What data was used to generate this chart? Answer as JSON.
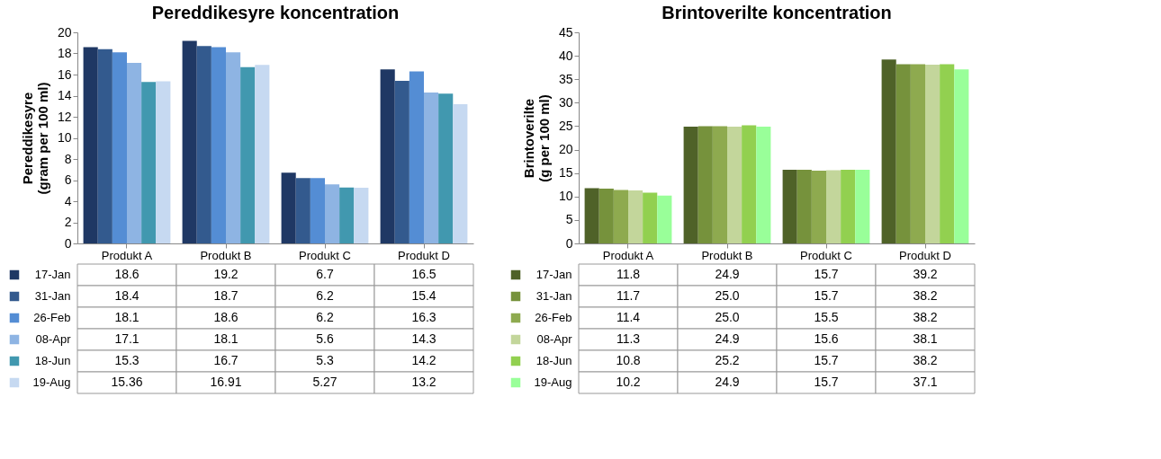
{
  "chart_data": [
    {
      "type": "bar",
      "title": "Pereddikesyre koncentration",
      "ylabel": "Pereddikesyre\n(gram per 100 ml)",
      "categories": [
        "Produkt A",
        "Produkt B",
        "Produkt C",
        "Produkt D"
      ],
      "ylim": [
        0,
        20
      ],
      "yticks": [
        0,
        2,
        4,
        6,
        8,
        10,
        12,
        14,
        16,
        18,
        20
      ],
      "grid": false,
      "legend": "bottom",
      "series": [
        {
          "name": "17-Jan",
          "color": "#1f3864",
          "values": [
            18.6,
            19.2,
            6.7,
            16.5
          ],
          "value_labels": [
            "18.6",
            "19.2",
            "6.7",
            "16.5"
          ]
        },
        {
          "name": "31-Jan",
          "color": "#335a8e",
          "values": [
            18.4,
            18.7,
            6.2,
            15.4
          ],
          "value_labels": [
            "18.4",
            "18.7",
            "6.2",
            "15.4"
          ]
        },
        {
          "name": "26-Feb",
          "color": "#548dd4",
          "values": [
            18.1,
            18.6,
            6.2,
            16.3
          ],
          "value_labels": [
            "18.1",
            "18.6",
            "6.2",
            "16.3"
          ]
        },
        {
          "name": "08-Apr",
          "color": "#8eb4e3",
          "values": [
            17.1,
            18.1,
            5.6,
            14.3
          ],
          "value_labels": [
            "17.1",
            "18.1",
            "5.6",
            "14.3"
          ]
        },
        {
          "name": "18-Jun",
          "color": "#4198af",
          "values": [
            15.3,
            16.7,
            5.3,
            14.2
          ],
          "value_labels": [
            "15.3",
            "16.7",
            "5.3",
            "14.2"
          ]
        },
        {
          "name": "19-Aug",
          "color": "#c6d9f1",
          "values": [
            15.36,
            16.91,
            5.27,
            13.2
          ],
          "value_labels": [
            "15.36",
            "16.91",
            "5.27",
            "13.2"
          ]
        }
      ]
    },
    {
      "type": "bar",
      "title": "Brintoverilte koncentration",
      "ylabel": "Brintoverilte\n(g per 100 ml)",
      "categories": [
        "Produkt A",
        "Produkt B",
        "Produkt C",
        "Produkt D"
      ],
      "ylim": [
        0,
        45
      ],
      "yticks": [
        0,
        5,
        10,
        15,
        20,
        25,
        30,
        35,
        40,
        45
      ],
      "grid": false,
      "legend": "bottom",
      "series": [
        {
          "name": "17-Jan",
          "color": "#4f6228",
          "values": [
            11.8,
            24.9,
            15.7,
            39.2
          ],
          "value_labels": [
            "11.8",
            "24.9",
            "15.7",
            "39.2"
          ]
        },
        {
          "name": "31-Jan",
          "color": "#76923c",
          "values": [
            11.7,
            25.0,
            15.7,
            38.2
          ],
          "value_labels": [
            "11.7",
            "25.0",
            "15.7",
            "38.2"
          ]
        },
        {
          "name": "26-Feb",
          "color": "#8eaa4f",
          "values": [
            11.4,
            25.0,
            15.5,
            38.2
          ],
          "value_labels": [
            "11.4",
            "25.0",
            "15.5",
            "38.2"
          ]
        },
        {
          "name": "08-Apr",
          "color": "#c3d69b",
          "values": [
            11.3,
            24.9,
            15.6,
            38.1
          ],
          "value_labels": [
            "11.3",
            "24.9",
            "15.6",
            "38.1"
          ]
        },
        {
          "name": "18-Jun",
          "color": "#92d050",
          "values": [
            10.8,
            25.2,
            15.7,
            38.2
          ],
          "value_labels": [
            "10.8",
            "25.2",
            "15.7",
            "38.2"
          ]
        },
        {
          "name": "19-Aug",
          "color": "#99ff99",
          "values": [
            10.2,
            24.9,
            15.7,
            37.1
          ],
          "value_labels": [
            "10.2",
            "24.9",
            "15.7",
            "37.1"
          ]
        }
      ]
    }
  ]
}
